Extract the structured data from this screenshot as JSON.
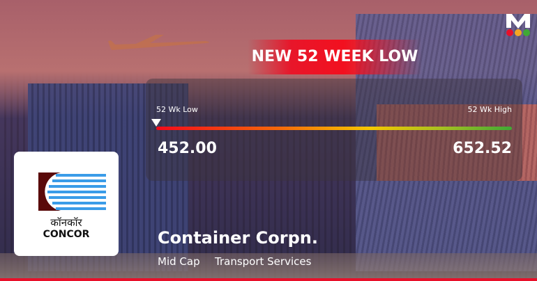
{
  "badge": {
    "text": "NEW 52 WEEK LOW",
    "color": "#e8162a"
  },
  "range": {
    "low_label": "52 Wk Low",
    "high_label": "52 Wk High",
    "low_value": "452.00",
    "high_value": "652.52",
    "marker_position_percent": 0
  },
  "company": {
    "name": "Container Corpn.",
    "cap": "Mid Cap",
    "sector": "Transport Services",
    "logo_text_hindi": "कॉनकॉर",
    "logo_text": "CONCOR"
  },
  "brand": {
    "letter": "M",
    "dots": [
      "#e8102a",
      "#f5a623",
      "#3fa935"
    ]
  }
}
